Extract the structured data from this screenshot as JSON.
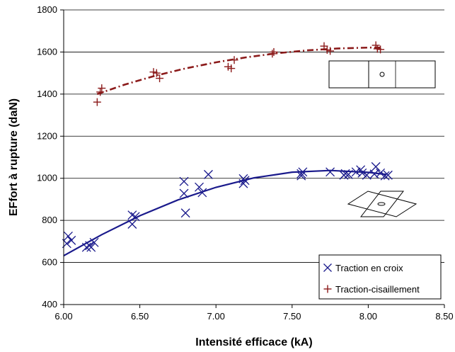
{
  "chart_data": {
    "type": "scatter",
    "title": "",
    "xlabel": "Intensité efficace (kA)",
    "ylabel": "EFfort à rupture (daN)",
    "xlim": [
      6.0,
      8.5
    ],
    "ylim": [
      400,
      1800
    ],
    "x_ticks": [
      "6.00",
      "6.50",
      "7.00",
      "7.50",
      "8.00",
      "8.50"
    ],
    "y_ticks": [
      "400",
      "600",
      "800",
      "1000",
      "1200",
      "1400",
      "1600",
      "1800"
    ],
    "grid": "horizontal",
    "legend_position": "bottom-right",
    "series": [
      {
        "name": "Traction en croix",
        "marker": "x",
        "color": "#1a1a8c",
        "points": [
          [
            6.02,
            690
          ],
          [
            6.03,
            725
          ],
          [
            6.05,
            705
          ],
          [
            6.15,
            672
          ],
          [
            6.17,
            680
          ],
          [
            6.18,
            672
          ],
          [
            6.2,
            695
          ],
          [
            6.45,
            825
          ],
          [
            6.45,
            782
          ],
          [
            6.47,
            818
          ],
          [
            6.79,
            985
          ],
          [
            6.79,
            928
          ],
          [
            6.8,
            835
          ],
          [
            6.89,
            958
          ],
          [
            6.91,
            932
          ],
          [
            6.95,
            1018
          ],
          [
            7.18,
            998
          ],
          [
            7.18,
            975
          ],
          [
            7.19,
            990
          ],
          [
            7.56,
            1012
          ],
          [
            7.56,
            1022
          ],
          [
            7.57,
            1030
          ],
          [
            7.75,
            1030
          ],
          [
            7.84,
            1015
          ],
          [
            7.85,
            1022
          ],
          [
            7.87,
            1018
          ],
          [
            7.92,
            1030
          ],
          [
            7.95,
            1040
          ],
          [
            7.96,
            1025
          ],
          [
            7.99,
            1015
          ],
          [
            8.04,
            1020
          ],
          [
            8.05,
            1055
          ],
          [
            8.08,
            1025
          ],
          [
            8.11,
            1012
          ],
          [
            8.13,
            1015
          ]
        ],
        "trend": [
          [
            6.0,
            632
          ],
          [
            6.25,
            732
          ],
          [
            6.5,
            822
          ],
          [
            6.75,
            897
          ],
          [
            7.0,
            957
          ],
          [
            7.25,
            1002
          ],
          [
            7.5,
            1029
          ],
          [
            7.75,
            1037
          ],
          [
            8.0,
            1028
          ],
          [
            8.12,
            1018
          ]
        ]
      },
      {
        "name": "Traction-cisaillement",
        "marker": "+",
        "color": "#8b1a1a",
        "points": [
          [
            6.22,
            1362
          ],
          [
            6.24,
            1410
          ],
          [
            6.25,
            1428
          ],
          [
            6.59,
            1505
          ],
          [
            6.61,
            1500
          ],
          [
            6.63,
            1475
          ],
          [
            7.08,
            1530
          ],
          [
            7.1,
            1522
          ],
          [
            7.12,
            1562
          ],
          [
            7.37,
            1592
          ],
          [
            7.38,
            1600
          ],
          [
            7.71,
            1628
          ],
          [
            7.73,
            1610
          ],
          [
            7.75,
            1605
          ],
          [
            8.05,
            1632
          ],
          [
            8.06,
            1615
          ],
          [
            8.08,
            1612
          ]
        ],
        "trend": [
          [
            6.22,
            1400
          ],
          [
            6.4,
            1445
          ],
          [
            6.6,
            1487
          ],
          [
            6.8,
            1522
          ],
          [
            7.0,
            1551
          ],
          [
            7.2,
            1575
          ],
          [
            7.4,
            1594
          ],
          [
            7.6,
            1608
          ],
          [
            7.8,
            1617
          ],
          [
            8.0,
            1621
          ],
          [
            8.08,
            1621
          ]
        ]
      }
    ]
  }
}
